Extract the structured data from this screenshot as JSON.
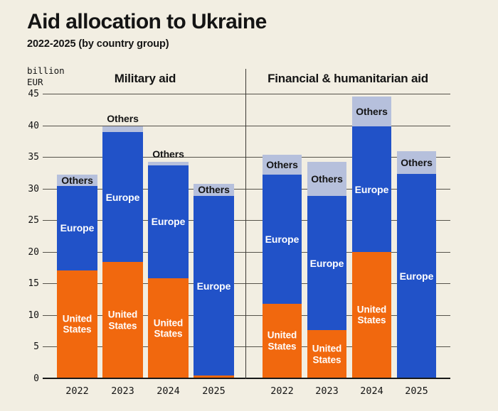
{
  "header": {
    "title": "Aid allocation to Ukraine",
    "subtitle": "2022-2025 (by country group)"
  },
  "axis": {
    "unit_label": "billion\nEUR",
    "ticks": [
      0,
      5,
      10,
      15,
      20,
      25,
      30,
      35,
      40,
      45
    ]
  },
  "colors": {
    "background": "#f2eee2",
    "united_states": "#f1680e",
    "europe": "#2152c8",
    "others": "#b6c0dc",
    "grid": "#55524a",
    "baseline": "#181818",
    "text": "#141414",
    "label_light": "#ffffff"
  },
  "chart_data": {
    "type": "bar",
    "stacked": true,
    "unit": "billion EUR",
    "title": "Aid allocation to Ukraine",
    "subtitle": "2022-2025 (by country group)",
    "categories": [
      "2022",
      "2023",
      "2024",
      "2025"
    ],
    "group_labels": {
      "united_states": "United States",
      "europe": "Europe",
      "others": "Others"
    },
    "ylim": [
      0,
      45
    ],
    "grid": true,
    "legend": "inline-labels",
    "panels": [
      {
        "title": "Military aid",
        "series": [
          {
            "name": "United States",
            "values": [
              17.1,
              18.4,
              15.8,
              0.4
            ]
          },
          {
            "name": "Europe",
            "values": [
              13.3,
              20.5,
              17.9,
              28.4
            ]
          },
          {
            "name": "Others",
            "values": [
              1.8,
              0.9,
              0.5,
              2.0
            ]
          }
        ],
        "totals": [
          32.2,
          39.8,
          34.2,
          30.8
        ],
        "others_label_placement": [
          "inside",
          "above",
          "above",
          "inside"
        ],
        "us_label_shown": [
          true,
          true,
          true,
          false
        ],
        "europe_label_shown": [
          true,
          true,
          true,
          true
        ]
      },
      {
        "title": "Financial & humanitarian aid",
        "series": [
          {
            "name": "United States",
            "values": [
              11.8,
              7.6,
              20.0,
              0
            ]
          },
          {
            "name": "Europe",
            "values": [
              20.4,
              21.2,
              19.8,
              32.3
            ]
          },
          {
            "name": "Others",
            "values": [
              3.2,
              5.4,
              4.8,
              3.6
            ]
          }
        ],
        "totals": [
          35.4,
          34.2,
          44.6,
          35.9
        ],
        "others_label_placement": [
          "inside",
          "inside",
          "inside",
          "inside"
        ],
        "us_label_shown": [
          true,
          true,
          true,
          false
        ],
        "europe_label_shown": [
          true,
          true,
          true,
          true
        ]
      }
    ]
  }
}
